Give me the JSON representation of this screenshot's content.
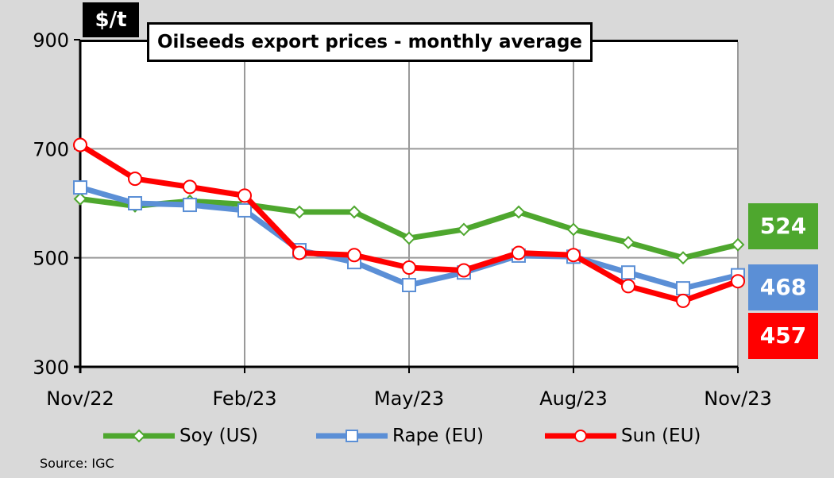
{
  "chart_data": {
    "type": "line",
    "title": "Oilseeds export prices - monthly average",
    "ylabel": "$/t",
    "xlabel": "",
    "ylim": [
      300,
      900
    ],
    "yticks": [
      300,
      500,
      700,
      900
    ],
    "x": [
      "Nov/22",
      "Dec/22",
      "Jan/23",
      "Feb/23",
      "Mar/23",
      "Apr/23",
      "May/23",
      "Jun/23",
      "Jul/23",
      "Aug/23",
      "Sep/23",
      "Oct/23",
      "Nov/23"
    ],
    "xtick_labels": [
      "Nov/22",
      "Feb/23",
      "May/23",
      "Aug/23",
      "Nov/23"
    ],
    "grid": true,
    "legend_position": "bottom",
    "series": [
      {
        "name": "Soy (US)",
        "color": "#4ea72e",
        "marker": "diamond",
        "values": [
          608,
          595,
          604,
          598,
          584,
          584,
          536,
          552,
          584,
          552,
          528,
          500,
          524
        ],
        "end_label": "524"
      },
      {
        "name": "Rape (EU)",
        "color": "#5b8fd6",
        "marker": "square",
        "values": [
          629,
          600,
          597,
          587,
          514,
          492,
          450,
          473,
          504,
          502,
          473,
          444,
          468
        ],
        "end_label": "468"
      },
      {
        "name": "Sun (EU)",
        "color": "#ff0000",
        "marker": "circle",
        "values": [
          707,
          645,
          630,
          614,
          509,
          505,
          482,
          477,
          509,
          505,
          448,
          421,
          457
        ],
        "end_label": "457"
      }
    ],
    "source": "Source:  IGC"
  }
}
